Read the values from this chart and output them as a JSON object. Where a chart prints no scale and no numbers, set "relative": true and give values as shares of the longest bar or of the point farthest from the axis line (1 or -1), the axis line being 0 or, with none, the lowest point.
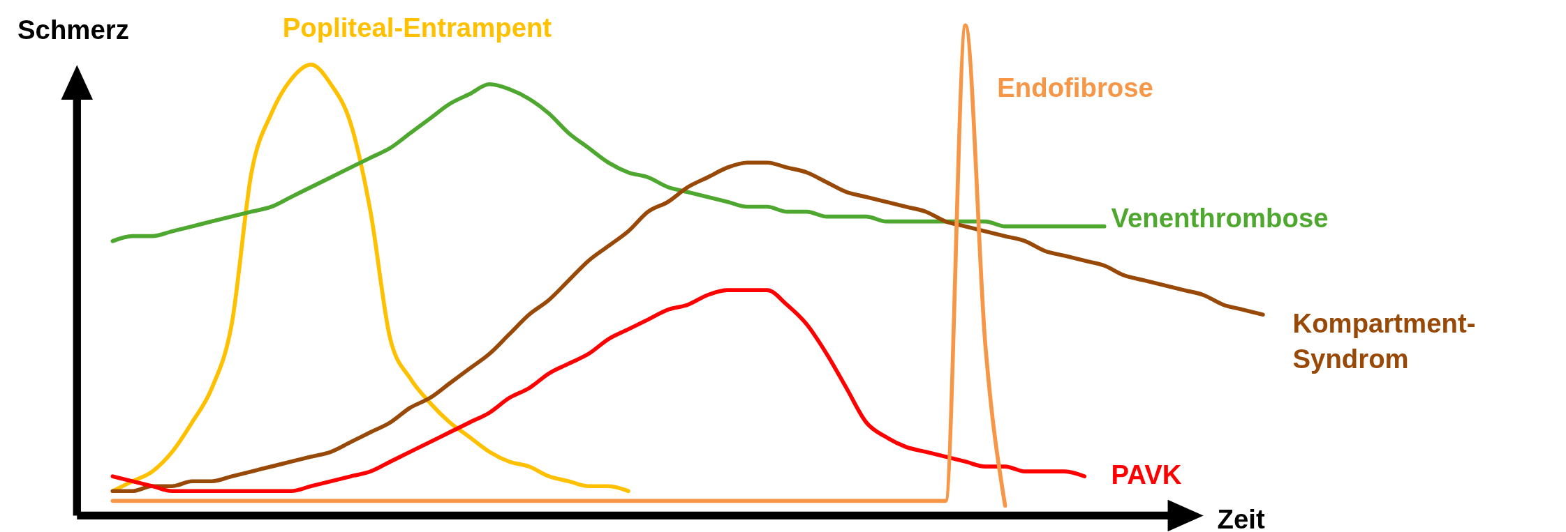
{
  "chart_data": {
    "type": "line",
    "relative": true,
    "xlabel": "Zeit",
    "ylabel": "Schmerz",
    "legend": false,
    "marker": "none",
    "line_style": "solid",
    "categories": [
      null,
      null,
      null,
      null,
      null,
      null,
      null,
      null,
      null,
      null,
      null,
      null,
      null,
      null,
      null,
      null,
      null,
      null,
      null,
      null,
      null,
      null,
      null,
      null,
      null,
      null,
      null,
      null,
      null,
      null,
      null,
      null,
      null,
      null,
      null,
      null,
      null,
      null,
      null,
      null,
      null,
      null,
      null,
      null,
      null,
      null,
      null,
      null,
      null,
      null,
      null,
      null,
      null,
      null,
      null,
      null,
      null,
      null,
      null
    ],
    "series": [
      {
        "name": "Popliteal-Entrampent",
        "color": "#ffc000",
        "values": [
          0.05,
          0.07,
          0.09,
          0.13,
          0.19,
          0.26,
          0.39,
          0.7,
          0.82,
          0.89,
          0.92,
          0.88,
          0.8,
          0.62,
          0.36,
          0.28,
          0.23,
          0.19,
          0.16,
          0.13,
          0.11,
          0.1,
          0.08,
          0.07,
          0.06,
          0.06,
          0.05,
          null,
          null,
          null,
          null,
          null,
          null,
          null,
          null,
          null,
          null,
          null,
          null,
          null,
          null,
          null,
          null,
          null,
          null,
          null,
          null,
          null,
          null,
          null,
          null,
          null,
          null,
          null,
          null,
          null,
          null,
          null,
          null
        ]
      },
      {
        "name": "Venenthrombose",
        "color": "#4ea72e",
        "values": [
          0.56,
          0.57,
          0.57,
          0.58,
          0.59,
          0.6,
          0.61,
          0.62,
          0.63,
          0.65,
          0.67,
          0.69,
          0.71,
          0.73,
          0.75,
          0.78,
          0.81,
          0.84,
          0.86,
          0.88,
          0.87,
          0.85,
          0.82,
          0.78,
          0.75,
          0.72,
          0.7,
          0.69,
          0.67,
          0.66,
          0.65,
          0.64,
          0.63,
          0.63,
          0.62,
          0.62,
          0.61,
          0.61,
          0.61,
          0.6,
          0.6,
          0.6,
          0.6,
          0.6,
          0.6,
          0.59,
          0.59,
          0.59,
          0.59,
          0.59,
          0.59,
          null,
          null,
          null,
          null,
          null,
          null,
          null,
          null
        ]
      },
      {
        "name": "Kompartment-Syndrom",
        "color": "#984807",
        "values": [
          0.05,
          0.05,
          0.06,
          0.06,
          0.07,
          0.07,
          0.08,
          0.09,
          0.1,
          0.11,
          0.12,
          0.13,
          0.15,
          0.17,
          0.19,
          0.22,
          0.24,
          0.27,
          0.3,
          0.33,
          0.37,
          0.41,
          0.44,
          0.48,
          0.52,
          0.55,
          0.58,
          0.62,
          0.64,
          0.67,
          0.69,
          0.71,
          0.72,
          0.72,
          0.71,
          0.7,
          0.68,
          0.66,
          0.65,
          0.64,
          0.63,
          0.62,
          0.6,
          0.59,
          0.58,
          0.57,
          0.56,
          0.54,
          0.53,
          0.52,
          0.51,
          0.49,
          0.48,
          0.47,
          0.46,
          0.45,
          0.43,
          0.42,
          0.41
        ]
      },
      {
        "name": "PAVK",
        "color": "#ff0000",
        "values": [
          0.08,
          0.07,
          0.06,
          0.05,
          0.05,
          0.05,
          0.05,
          0.05,
          0.05,
          0.05,
          0.06,
          0.07,
          0.08,
          0.09,
          0.11,
          0.13,
          0.15,
          0.17,
          0.19,
          0.21,
          0.24,
          0.26,
          0.29,
          0.31,
          0.33,
          0.36,
          0.38,
          0.4,
          0.42,
          0.43,
          0.45,
          0.46,
          0.46,
          0.46,
          0.43,
          0.39,
          0.33,
          0.26,
          0.19,
          0.16,
          0.14,
          0.13,
          0.12,
          0.11,
          0.1,
          0.1,
          0.09,
          0.09,
          0.09,
          0.08,
          null,
          null,
          null,
          null,
          null,
          null,
          null,
          null,
          null
        ]
      },
      {
        "name": "Endofibrose",
        "color": "#f79646",
        "values": [
          0.03,
          0.03,
          0.03,
          0.03,
          0.03,
          0.03,
          0.03,
          0.03,
          0.03,
          0.03,
          0.03,
          0.03,
          0.03,
          0.03,
          0.03,
          0.03,
          0.03,
          0.03,
          0.03,
          0.03,
          0.03,
          0.03,
          0.03,
          0.03,
          0.03,
          0.03,
          0.03,
          0.03,
          0.03,
          0.03,
          0.03,
          0.03,
          0.03,
          0.03,
          0.03,
          0.03,
          0.03,
          0.03,
          0.03,
          0.03,
          0.03,
          0.03,
          0.03,
          1.0,
          0.35,
          0.02,
          null,
          null,
          null,
          null,
          null,
          null,
          null,
          null,
          null,
          null,
          null,
          null,
          null
        ]
      }
    ]
  }
}
